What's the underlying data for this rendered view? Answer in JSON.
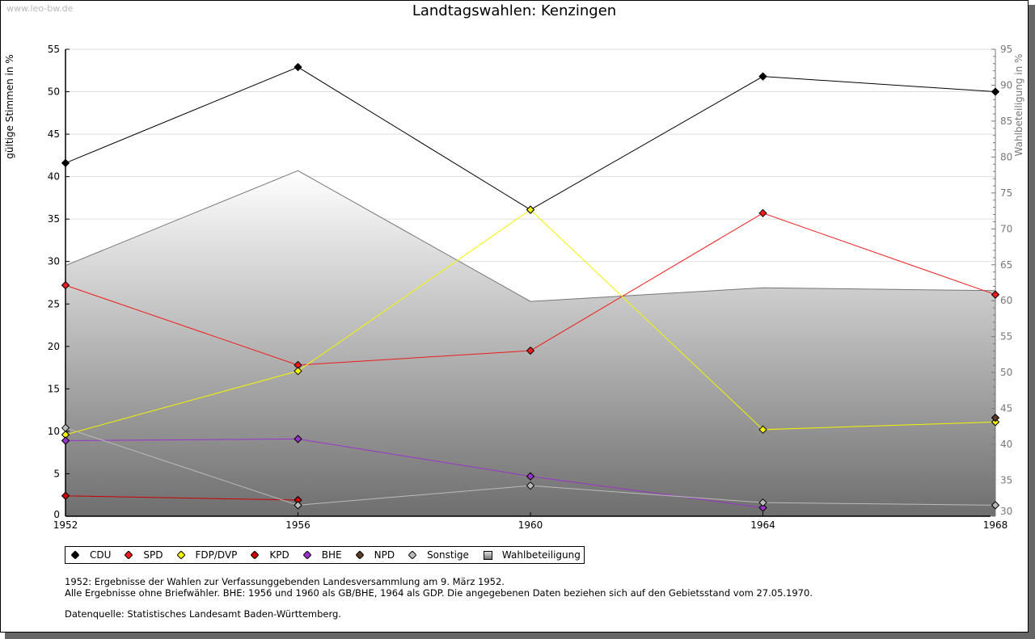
{
  "watermark": "www.leo-bw.de",
  "title": "Landtagswahlen: Kenzingen",
  "notes": {
    "line1": "1952: Ergebnisse der Wahlen zur Verfassunggebenden Landesversammlung am 9. März 1952.",
    "line2": "Alle Ergebnisse ohne Briefwähler. BHE: 1956 und 1960 als GB/BHE, 1964 als GDP. Die angegebenen Daten beziehen sich auf den Gebietsstand vom 27.05.1970.",
    "source": "Datenquelle: Statistisches Landesamt Baden-Württemberg."
  },
  "chart_data": {
    "type": "line",
    "title": "Landtagswahlen: Kenzingen",
    "xlabel": "",
    "ylabel": "gültige Stimmen in %",
    "ylabel_right": "Wahlbeteiligung in %",
    "x": [
      "1952",
      "1956",
      "1960",
      "1964",
      "1968"
    ],
    "ylim": [
      0,
      55
    ],
    "ylim_right": [
      30,
      95
    ],
    "yticks": [
      "0",
      "5",
      "10",
      "15",
      "20",
      "25",
      "30",
      "35",
      "40",
      "45",
      "50",
      "55"
    ],
    "yticks_right": [
      "30",
      "35",
      "40",
      "45",
      "50",
      "55",
      "60",
      "65",
      "70",
      "75",
      "80",
      "85",
      "90",
      "95"
    ],
    "grid": true,
    "legend_position": "bottom-left",
    "series": [
      {
        "name": "CDU",
        "color": "#000000",
        "values": [
          41.6,
          52.9,
          36.1,
          51.8,
          50.0
        ]
      },
      {
        "name": "SPD",
        "color": "#ee1c1c",
        "values": [
          27.2,
          17.8,
          19.5,
          35.7,
          26.1
        ]
      },
      {
        "name": "FDP/DVP",
        "color": "#f5f500",
        "values": [
          9.6,
          17.1,
          36.1,
          10.2,
          11.1
        ]
      },
      {
        "name": "KPD",
        "color": "#cc0000",
        "values": [
          2.4,
          1.9,
          null,
          null,
          null
        ]
      },
      {
        "name": "BHE",
        "color": "#9933cc",
        "values": [
          8.9,
          9.1,
          4.7,
          1.0,
          null
        ]
      },
      {
        "name": "NPD",
        "color": "#5c3a26",
        "values": [
          null,
          null,
          null,
          null,
          11.6
        ]
      },
      {
        "name": "Sonstige",
        "color": "#bbbbbb",
        "values": [
          10.4,
          1.3,
          3.6,
          1.6,
          1.3
        ]
      }
    ],
    "area_series": {
      "name": "Wahlbeteiligung",
      "axis": "right",
      "color": "#808080",
      "values": [
        64.9,
        78.1,
        59.9,
        61.8,
        61.4
      ]
    }
  }
}
